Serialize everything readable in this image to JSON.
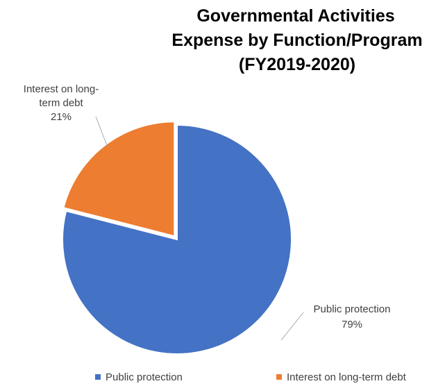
{
  "chart_data": {
    "type": "pie",
    "title_lines": [
      "Governmental Activities",
      "Expense by Function/Program",
      "(FY2019-2020)"
    ],
    "slices": [
      {
        "name": "Public protection",
        "value": 79,
        "label": "79%",
        "color": "#4472c4"
      },
      {
        "name": "Interest on long-term debt",
        "value": 21,
        "label": "21%",
        "color": "#ed7d31"
      }
    ],
    "data_labels": [
      {
        "lines": [
          "Interest on long-",
          "term debt",
          "21%"
        ]
      },
      {
        "lines": [
          "Public protection",
          "79%"
        ]
      }
    ],
    "legend": {
      "position": "bottom",
      "items": [
        "Public protection",
        "Interest on long-term debt"
      ]
    }
  }
}
